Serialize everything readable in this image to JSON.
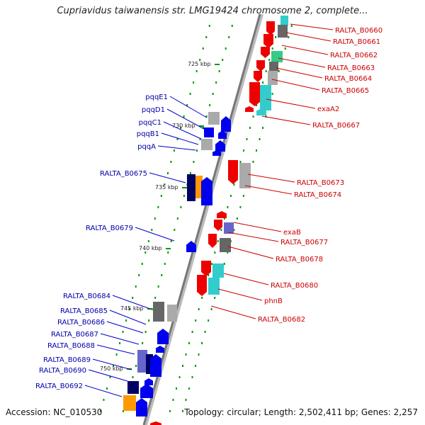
{
  "title": "Cupriavidus taiwanensis str. LMG19424 chromosome 2, complete...",
  "accession": "Accession: NC_010530",
  "summary": "Topology: circular; Length: 2,502,411 bp; Genes: 2,257",
  "colors": {
    "red": "#ee0000",
    "blue": "#0000ee",
    "gray": "#aaaaaa",
    "dark_gray": "#666666",
    "cyan": "#33cccc",
    "green": "#33cc88",
    "orange": "#ff9900",
    "navy": "#000066",
    "purple": "#6666cc",
    "tick_green": "#009900",
    "red_label": "#cc0000",
    "blue_label": "#0000aa"
  },
  "kbp_labels": [
    "725 kbp",
    "730 kbp",
    "735 kbp",
    "740 kbp",
    "745 kbp",
    "750 kbp"
  ],
  "right_labels": [
    "RALTA_B0660",
    "RALTA_B0661",
    "RALTA_B0662",
    "RALTA_B0663",
    "RALTA_B0664",
    "RALTA_B0665",
    "exaA2",
    "RALTA_B0667",
    "RALTA_B0673",
    "RALTA_B0674",
    "exaB",
    "RALTA_B0677",
    "RALTA_B0678",
    "RALTA_B0680",
    "phnB",
    "RALTA_B0682"
  ],
  "left_labels": [
    "pqqE1",
    "pqqD1",
    "pqqC1",
    "pqqB1",
    "pqqA",
    "RALTA_B0675",
    "RALTA_B0679",
    "RALTA_B0684",
    "RALTA_B0685",
    "RALTA_B0686",
    "RALTA_B0687",
    "RALTA_B0688",
    "RALTA_B0689",
    "RALTA_B0690",
    "RALTA_B0692"
  ]
}
